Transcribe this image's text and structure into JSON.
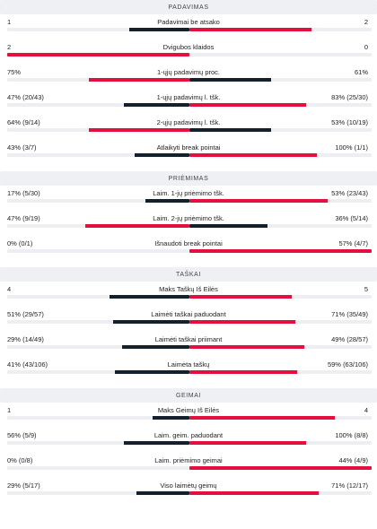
{
  "colors": {
    "leader": "#e3103f",
    "other": "#14202b",
    "track": "#eceef1"
  },
  "sections": [
    {
      "title": "PADAVIMAS",
      "rows": [
        {
          "label": "Padavimai be atsako",
          "left": "1",
          "right": "2",
          "left_share": 0.33,
          "right_share": 0.67,
          "winner": "right"
        },
        {
          "label": "Dvigubos klaidos",
          "left": "2",
          "right": "0",
          "left_share": 1.0,
          "right_share": 0.0,
          "winner": "left"
        },
        {
          "label": "1-ųjų padavimų proc.",
          "left": "75%",
          "right": "61%",
          "left_share": 0.55,
          "right_share": 0.45,
          "winner": "left"
        },
        {
          "label": "1-ųjų padavimų l. tšk.",
          "left": "47% (20/43)",
          "right": "83% (25/30)",
          "left_share": 0.36,
          "right_share": 0.64,
          "winner": "right"
        },
        {
          "label": "2-ųjų padavimų l. tšk.",
          "left": "64% (9/14)",
          "right": "53% (10/19)",
          "left_share": 0.55,
          "right_share": 0.45,
          "winner": "left"
        },
        {
          "label": "Atlaikyti break pointai",
          "left": "43% (3/7)",
          "right": "100% (1/1)",
          "left_share": 0.3,
          "right_share": 0.7,
          "winner": "right"
        }
      ]
    },
    {
      "title": "PRIĖMIMAS",
      "rows": [
        {
          "label": "Laim. 1-jų priėmimo tšk.",
          "left": "17% (5/30)",
          "right": "53% (23/43)",
          "left_share": 0.24,
          "right_share": 0.76,
          "winner": "right"
        },
        {
          "label": "Laim. 2-jų priėmimo tšk.",
          "left": "47% (9/19)",
          "right": "36% (5/14)",
          "left_share": 0.57,
          "right_share": 0.43,
          "winner": "left"
        },
        {
          "label": "Išnaudoti break pointai",
          "left": "0% (0/1)",
          "right": "57% (4/7)",
          "left_share": 0.0,
          "right_share": 1.0,
          "winner": "right"
        }
      ]
    },
    {
      "title": "TAŠKAI",
      "rows": [
        {
          "label": "Maks Taškų Iš Eilės",
          "left": "4",
          "right": "5",
          "left_share": 0.44,
          "right_share": 0.56,
          "winner": "right"
        },
        {
          "label": "Laimėti taškai paduodant",
          "left": "51% (29/57)",
          "right": "71% (35/49)",
          "left_share": 0.42,
          "right_share": 0.58,
          "winner": "right"
        },
        {
          "label": "Laimėti taškai priimant",
          "left": "29% (14/49)",
          "right": "49% (28/57)",
          "left_share": 0.37,
          "right_share": 0.63,
          "winner": "right"
        },
        {
          "label": "Laimėta taškų",
          "left": "41% (43/106)",
          "right": "59% (63/106)",
          "left_share": 0.41,
          "right_share": 0.59,
          "winner": "right"
        }
      ]
    },
    {
      "title": "GEIMAI",
      "rows": [
        {
          "label": "Maks Geimų Iš Eilės",
          "left": "1",
          "right": "4",
          "left_share": 0.2,
          "right_share": 0.8,
          "winner": "right"
        },
        {
          "label": "Laim. geim. paduodant",
          "left": "56% (5/9)",
          "right": "100% (8/8)",
          "left_share": 0.36,
          "right_share": 0.64,
          "winner": "right"
        },
        {
          "label": "Laim. priėmimo geimai",
          "left": "0% (0/8)",
          "right": "44% (4/9)",
          "left_share": 0.0,
          "right_share": 1.0,
          "winner": "right"
        },
        {
          "label": "Viso laimėtų geimų",
          "left": "29% (5/17)",
          "right": "71% (12/17)",
          "left_share": 0.29,
          "right_share": 0.71,
          "winner": "right"
        }
      ]
    }
  ]
}
